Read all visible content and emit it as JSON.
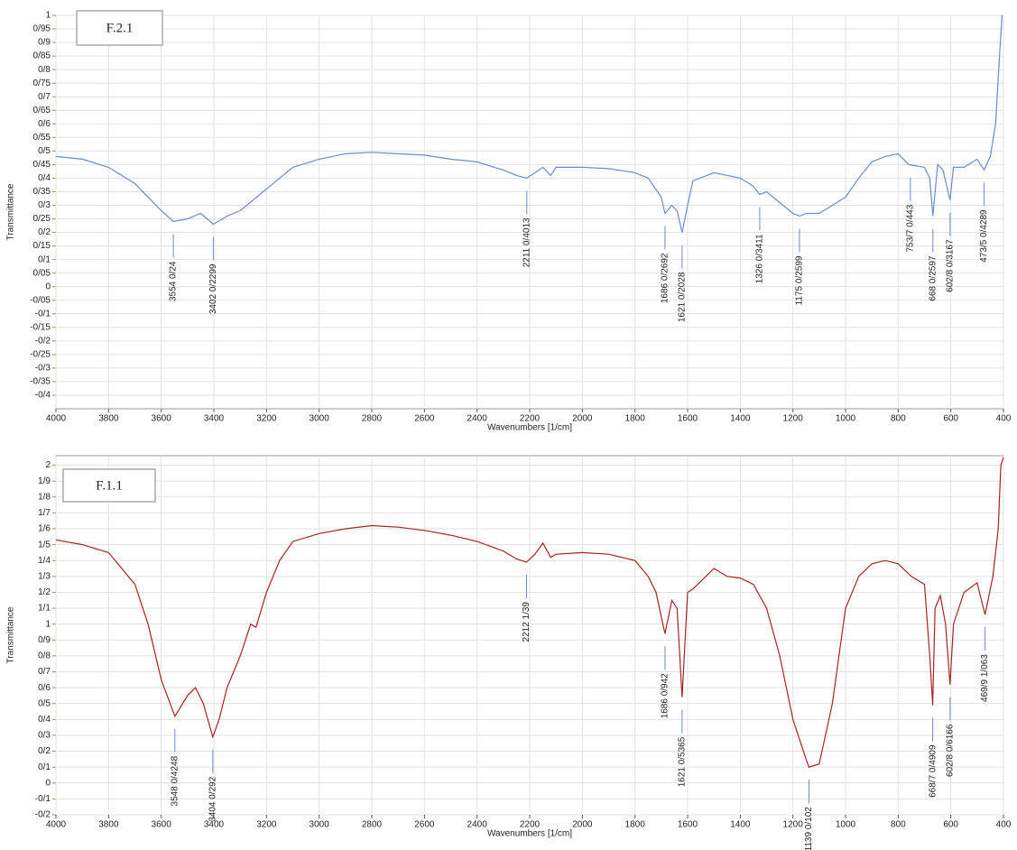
{
  "chart_data": [
    {
      "type": "line",
      "title": "F.2.1",
      "xlabel": "Wavenumbers [1/cm]",
      "ylabel": "Transmittance",
      "color": "#6b8cc4",
      "grid": true,
      "xlim": [
        4000,
        400
      ],
      "ylim": [
        -0.45,
        1
      ],
      "xticks": [
        4000,
        3800,
        3600,
        3400,
        3200,
        3000,
        2800,
        2600,
        2400,
        2200,
        2000,
        1800,
        1600,
        1400,
        1200,
        1000,
        800,
        600,
        400
      ],
      "yticks": [
        {
          "value": -0.4,
          "label": "-0/4"
        },
        {
          "value": -0.35,
          "label": "-0/35"
        },
        {
          "value": -0.3,
          "label": "-0/3"
        },
        {
          "value": -0.25,
          "label": "-0/25"
        },
        {
          "value": -0.2,
          "label": "-0/2"
        },
        {
          "value": -0.15,
          "label": "-0/15"
        },
        {
          "value": -0.1,
          "label": "-0/1"
        },
        {
          "value": -0.05,
          "label": "-0/05"
        },
        0,
        {
          "value": 0.05,
          "label": "0/05"
        },
        {
          "value": 0.1,
          "label": "0/1"
        },
        {
          "value": 0.15,
          "label": "0/15"
        },
        {
          "value": 0.2,
          "label": "0/2"
        },
        {
          "value": 0.25,
          "label": "0/25"
        },
        {
          "value": 0.3,
          "label": "0/3"
        },
        {
          "value": 0.35,
          "label": "0/35"
        },
        {
          "value": 0.4,
          "label": "0/4"
        },
        {
          "value": 0.45,
          "label": "0/45"
        },
        {
          "value": 0.5,
          "label": "0/5"
        },
        {
          "value": 0.55,
          "label": "0/55"
        },
        {
          "value": 0.6,
          "label": "0/6"
        },
        {
          "value": 0.65,
          "label": "0/65"
        },
        {
          "value": 0.7,
          "label": "0/7"
        },
        {
          "value": 0.75,
          "label": "0/75"
        },
        {
          "value": 0.8,
          "label": "0/8"
        },
        {
          "value": 0.85,
          "label": "0/85"
        },
        {
          "value": 0.9,
          "label": "0/9"
        },
        {
          "value": 0.95,
          "label": "0/95"
        },
        1
      ],
      "x": [
        4000,
        3900,
        3800,
        3700,
        3600,
        3554,
        3500,
        3450,
        3402,
        3350,
        3300,
        3250,
        3200,
        3100,
        3000,
        2900,
        2800,
        2700,
        2600,
        2500,
        2400,
        2300,
        2250,
        2211,
        2180,
        2150,
        2120,
        2100,
        2000,
        1900,
        1800,
        1750,
        1700,
        1686,
        1660,
        1640,
        1621,
        1600,
        1580,
        1500,
        1400,
        1350,
        1326,
        1300,
        1250,
        1200,
        1175,
        1150,
        1100,
        1050,
        1000,
        950,
        900,
        850,
        800,
        760,
        700,
        680,
        668,
        650,
        630,
        602.8,
        590,
        550,
        500,
        473.5,
        450,
        430,
        415,
        405
      ],
      "values": [
        0.48,
        0.47,
        0.44,
        0.38,
        0.28,
        0.24,
        0.25,
        0.27,
        0.23,
        0.26,
        0.28,
        0.32,
        0.36,
        0.44,
        0.47,
        0.49,
        0.495,
        0.49,
        0.485,
        0.47,
        0.46,
        0.43,
        0.41,
        0.4,
        0.42,
        0.44,
        0.41,
        0.44,
        0.44,
        0.435,
        0.42,
        0.4,
        0.33,
        0.27,
        0.3,
        0.28,
        0.2,
        0.3,
        0.39,
        0.42,
        0.4,
        0.37,
        0.34,
        0.35,
        0.31,
        0.27,
        0.26,
        0.27,
        0.27,
        0.3,
        0.33,
        0.4,
        0.46,
        0.48,
        0.49,
        0.45,
        0.44,
        0.4,
        0.26,
        0.45,
        0.43,
        0.32,
        0.44,
        0.44,
        0.47,
        0.43,
        0.48,
        0.6,
        0.85,
        1.0
      ],
      "annotations": [
        {
          "x": 3554,
          "label": "3554  0/24"
        },
        {
          "x": 3402,
          "label": "3402  0/2299"
        },
        {
          "x": 2211,
          "label": "2211  0/4013"
        },
        {
          "x": 1686,
          "label": "1686  0/2692"
        },
        {
          "x": 1621,
          "label": "1621  0/2028"
        },
        {
          "x": 1326,
          "label": "1326  0/3411"
        },
        {
          "x": 1175,
          "label": "1175  0/2599"
        },
        {
          "x": 753.7,
          "label": "753/7  0/443"
        },
        {
          "x": 668,
          "label": "668  0/2597"
        },
        {
          "x": 602.8,
          "label": "602/8  0/3167"
        },
        {
          "x": 473.5,
          "label": "473/5  0/4289"
        }
      ]
    },
    {
      "type": "line",
      "title": "F.1.1",
      "xlabel": "Wavenumbers [1/cm]",
      "ylabel": "Transmittance",
      "color": "#a62424",
      "grid": true,
      "xlim": [
        4000,
        400
      ],
      "ylim": [
        -0.2,
        2.06
      ],
      "xticks": [
        4000,
        3800,
        3600,
        3400,
        3200,
        3000,
        2800,
        2600,
        2400,
        2200,
        2000,
        1800,
        1600,
        1400,
        1200,
        1000,
        800,
        600,
        400
      ],
      "yticks": [
        {
          "value": -0.2,
          "label": "-0/2"
        },
        {
          "value": -0.1,
          "label": "-0/1"
        },
        0,
        {
          "value": 0.1,
          "label": "0/1"
        },
        {
          "value": 0.2,
          "label": "0/2"
        },
        {
          "value": 0.3,
          "label": "0/3"
        },
        {
          "value": 0.4,
          "label": "0/4"
        },
        {
          "value": 0.5,
          "label": "0/5"
        },
        {
          "value": 0.6,
          "label": "0/6"
        },
        {
          "value": 0.7,
          "label": "0/7"
        },
        {
          "value": 0.8,
          "label": "0/8"
        },
        {
          "value": 0.9,
          "label": "0/9"
        },
        1,
        {
          "value": 1.1,
          "label": "1/1"
        },
        {
          "value": 1.2,
          "label": "1/2"
        },
        {
          "value": 1.3,
          "label": "1/3"
        },
        {
          "value": 1.4,
          "label": "1/4"
        },
        {
          "value": 1.5,
          "label": "1/5"
        },
        {
          "value": 1.6,
          "label": "1/6"
        },
        {
          "value": 1.7,
          "label": "1/7"
        },
        {
          "value": 1.8,
          "label": "1/8"
        },
        {
          "value": 1.9,
          "label": "1/9"
        },
        2
      ],
      "x": [
        4000,
        3900,
        3800,
        3700,
        3650,
        3600,
        3548,
        3500,
        3470,
        3440,
        3404,
        3380,
        3350,
        3300,
        3260,
        3240,
        3200,
        3150,
        3100,
        3000,
        2900,
        2800,
        2700,
        2600,
        2500,
        2400,
        2300,
        2250,
        2212,
        2180,
        2150,
        2120,
        2100,
        2000,
        1900,
        1800,
        1750,
        1720,
        1686,
        1660,
        1640,
        1621,
        1600,
        1580,
        1500,
        1450,
        1400,
        1350,
        1300,
        1250,
        1200,
        1150,
        1139,
        1100,
        1050,
        1000,
        950,
        900,
        850,
        800,
        750,
        700,
        680,
        668.7,
        660,
        640,
        620,
        602.8,
        590,
        550,
        500,
        469.9,
        440,
        420,
        410,
        400
      ],
      "values": [
        1.53,
        1.5,
        1.45,
        1.25,
        1.0,
        0.65,
        0.42,
        0.55,
        0.6,
        0.5,
        0.29,
        0.4,
        0.6,
        0.8,
        1.0,
        0.98,
        1.2,
        1.4,
        1.52,
        1.57,
        1.6,
        1.62,
        1.61,
        1.59,
        1.56,
        1.52,
        1.46,
        1.41,
        1.39,
        1.44,
        1.51,
        1.42,
        1.44,
        1.45,
        1.44,
        1.4,
        1.3,
        1.2,
        0.94,
        1.15,
        1.1,
        0.54,
        1.2,
        1.22,
        1.35,
        1.3,
        1.29,
        1.25,
        1.1,
        0.8,
        0.4,
        0.15,
        0.1,
        0.12,
        0.5,
        1.1,
        1.3,
        1.38,
        1.4,
        1.38,
        1.3,
        1.25,
        0.8,
        0.49,
        1.1,
        1.18,
        1.0,
        0.62,
        1.0,
        1.2,
        1.26,
        1.06,
        1.3,
        1.6,
        2.0,
        2.05
      ],
      "annotations": [
        {
          "x": 3548,
          "label": "3548  0/4248"
        },
        {
          "x": 3404,
          "label": "3404  0/292"
        },
        {
          "x": 2212,
          "label": "2212  1/39"
        },
        {
          "x": 1686,
          "label": "1686  0/942"
        },
        {
          "x": 1621,
          "label": "1621  0/5365"
        },
        {
          "x": 1139,
          "label": "1139  0/102"
        },
        {
          "x": 668.7,
          "label": "668/7  0/4909"
        },
        {
          "x": 602.8,
          "label": "602/8  0/6166"
        },
        {
          "x": 469.9,
          "label": "469/9  1/063"
        }
      ]
    }
  ]
}
